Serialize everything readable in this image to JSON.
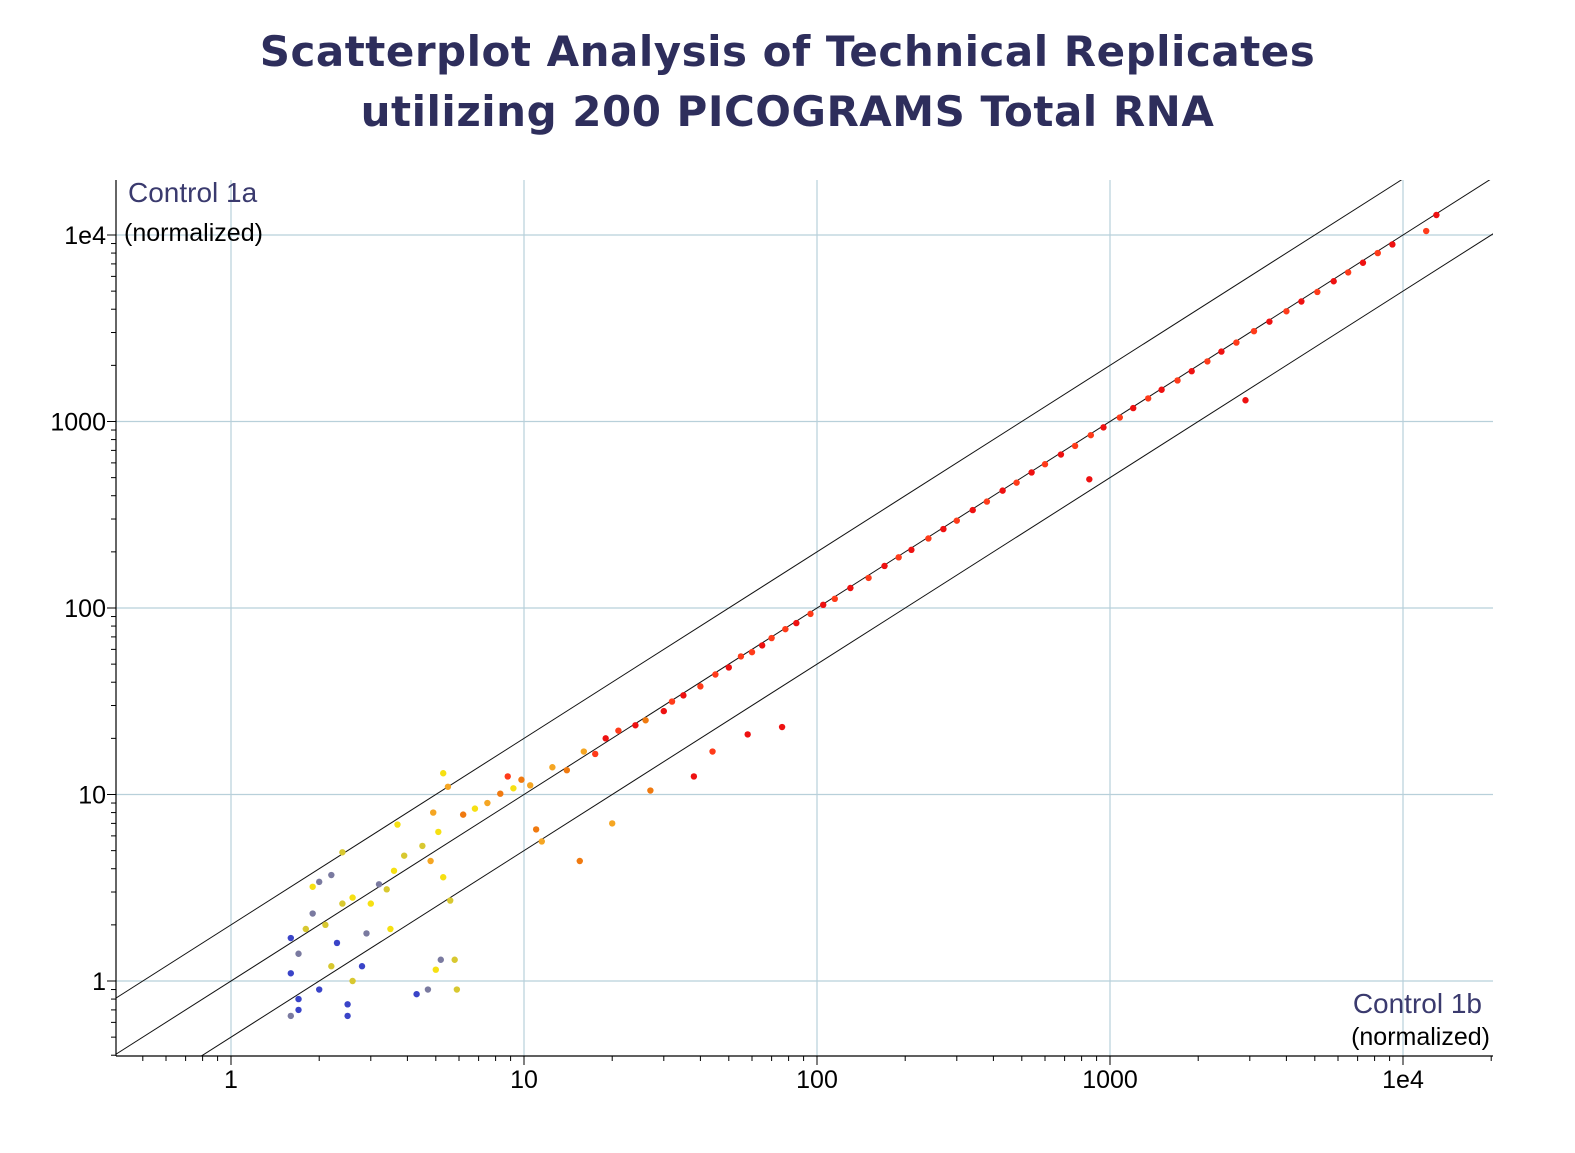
{
  "title_line1": "Scatterplot Analysis of Technical Replicates",
  "title_line2": "utilizing 200 PICOGRAMS Total RNA",
  "chart_data": {
    "type": "scatter",
    "title": "Scatterplot Analysis of Technical Replicates utilizing 200 PICOGRAMS Total RNA",
    "x_scale": "log",
    "y_scale": "log",
    "xlim": [
      0.4,
      20000
    ],
    "ylim": [
      0.4,
      20000
    ],
    "x_ticks": [
      1,
      10,
      100,
      1000,
      10000
    ],
    "x_tick_labels": [
      "1",
      "10",
      "100",
      "1000",
      "1e4"
    ],
    "y_ticks": [
      1,
      10,
      100,
      1000,
      10000
    ],
    "y_tick_labels": [
      "1",
      "10",
      "100",
      "1000",
      "1e4"
    ],
    "xlabel": "Control 1b",
    "xlabel_sub": "(normalized)",
    "ylabel": "Control 1a",
    "ylabel_sub": "(normalized)",
    "grid": true,
    "grid_color": "#b8d0da",
    "reference_lines": [
      {
        "slope_factor": 2
      },
      {
        "slope_factor": 1
      },
      {
        "slope_factor": 0.5
      }
    ],
    "color_scale": [
      "#3a44c8",
      "#7a7aa0",
      "#d8c830",
      "#f6e012",
      "#f5a623",
      "#f07a10",
      "#ff3b1a",
      "#ee1111"
    ],
    "points": [
      [
        1.6,
        1.1
      ],
      [
        1.7,
        1.4
      ],
      [
        1.8,
        1.9
      ],
      [
        1.6,
        1.7
      ],
      [
        1.9,
        2.3
      ],
      [
        2.1,
        2.0
      ],
      [
        2.3,
        1.6
      ],
      [
        1.7,
        0.8
      ],
      [
        1.6,
        0.65
      ],
      [
        1.7,
        0.7
      ],
      [
        2.0,
        0.9
      ],
      [
        2.2,
        1.2
      ],
      [
        2.5,
        0.65
      ],
      [
        2.5,
        0.75
      ],
      [
        2.6,
        1.0
      ],
      [
        2.8,
        1.2
      ],
      [
        2.4,
        2.6
      ],
      [
        2.6,
        2.8
      ],
      [
        2.0,
        3.4
      ],
      [
        2.4,
        4.9
      ],
      [
        1.9,
        3.2
      ],
      [
        2.2,
        3.7
      ],
      [
        2.9,
        1.8
      ],
      [
        3.0,
        2.6
      ],
      [
        3.2,
        3.3
      ],
      [
        3.4,
        3.1
      ],
      [
        3.6,
        3.9
      ],
      [
        3.9,
        4.7
      ],
      [
        3.7,
        6.9
      ],
      [
        3.5,
        1.9
      ],
      [
        4.3,
        0.85
      ],
      [
        4.7,
        0.9
      ],
      [
        5.0,
        1.15
      ],
      [
        5.2,
        1.3
      ],
      [
        5.8,
        1.3
      ],
      [
        5.9,
        0.9
      ],
      [
        5.6,
        2.7
      ],
      [
        5.3,
        3.6
      ],
      [
        4.8,
        4.4
      ],
      [
        4.5,
        5.3
      ],
      [
        5.1,
        6.3
      ],
      [
        4.9,
        8.0
      ],
      [
        5.3,
        13.0
      ],
      [
        5.5,
        11.0
      ],
      [
        6.2,
        7.8
      ],
      [
        6.8,
        8.4
      ],
      [
        7.5,
        9.0
      ],
      [
        8.3,
        10.1
      ],
      [
        9.2,
        10.8
      ],
      [
        9.8,
        12.0
      ],
      [
        8.8,
        12.5
      ],
      [
        10.5,
        11.2
      ],
      [
        11.5,
        5.6
      ],
      [
        11.0,
        6.5
      ],
      [
        12.5,
        14.0
      ],
      [
        14.0,
        13.5
      ],
      [
        15.5,
        4.4
      ],
      [
        16.0,
        17.0
      ],
      [
        17.5,
        16.5
      ],
      [
        19.0,
        20.0
      ],
      [
        20.0,
        7.0
      ],
      [
        21.0,
        22.0
      ],
      [
        24.0,
        23.5
      ],
      [
        26.0,
        25.0
      ],
      [
        27.0,
        10.5
      ],
      [
        30.0,
        28.0
      ],
      [
        32.0,
        31.5
      ],
      [
        35.0,
        34.0
      ],
      [
        38.0,
        12.5
      ],
      [
        40.0,
        38.0
      ],
      [
        44.0,
        17.0
      ],
      [
        45.0,
        44.0
      ],
      [
        50.0,
        48.0
      ],
      [
        55.0,
        55.0
      ],
      [
        58.0,
        21.0
      ],
      [
        60.0,
        58.0
      ],
      [
        65.0,
        63.0
      ],
      [
        70.0,
        69.0
      ],
      [
        76.0,
        23.0
      ],
      [
        78.0,
        77.0
      ],
      [
        85.0,
        83.0
      ],
      [
        95.0,
        93.0
      ],
      [
        105.0,
        104.0
      ],
      [
        115.0,
        112.0
      ],
      [
        130.0,
        128.0
      ],
      [
        150.0,
        145.0
      ],
      [
        170.0,
        168.0
      ],
      [
        190.0,
        187.0
      ],
      [
        210.0,
        205.0
      ],
      [
        240.0,
        236.0
      ],
      [
        270.0,
        265.0
      ],
      [
        300.0,
        294.0
      ],
      [
        340.0,
        335.0
      ],
      [
        380.0,
        372.0
      ],
      [
        430.0,
        426.0
      ],
      [
        480.0,
        470.0
      ],
      [
        540.0,
        533.0
      ],
      [
        600.0,
        590.0
      ],
      [
        680.0,
        665.0
      ],
      [
        760.0,
        740.0
      ],
      [
        850.0,
        490.0
      ],
      [
        860.0,
        845.0
      ],
      [
        950.0,
        930.0
      ],
      [
        1080.0,
        1050.0
      ],
      [
        1200.0,
        1180.0
      ],
      [
        1350.0,
        1330.0
      ],
      [
        1500.0,
        1480.0
      ],
      [
        1700.0,
        1660.0
      ],
      [
        1900.0,
        1860.0
      ],
      [
        2150.0,
        2100.0
      ],
      [
        2400.0,
        2370.0
      ],
      [
        2700.0,
        2650.0
      ],
      [
        2900.0,
        1300.0
      ],
      [
        3100.0,
        3050.0
      ],
      [
        3500.0,
        3430.0
      ],
      [
        4000.0,
        3900.0
      ],
      [
        4500.0,
        4400.0
      ],
      [
        5100.0,
        4950.0
      ],
      [
        5800.0,
        5650.0
      ],
      [
        6500.0,
        6300.0
      ],
      [
        7300.0,
        7100.0
      ],
      [
        8200.0,
        8000.0
      ],
      [
        9200.0,
        8900.0
      ],
      [
        12000.0,
        10500.0
      ],
      [
        13000.0,
        12800.0
      ]
    ]
  }
}
